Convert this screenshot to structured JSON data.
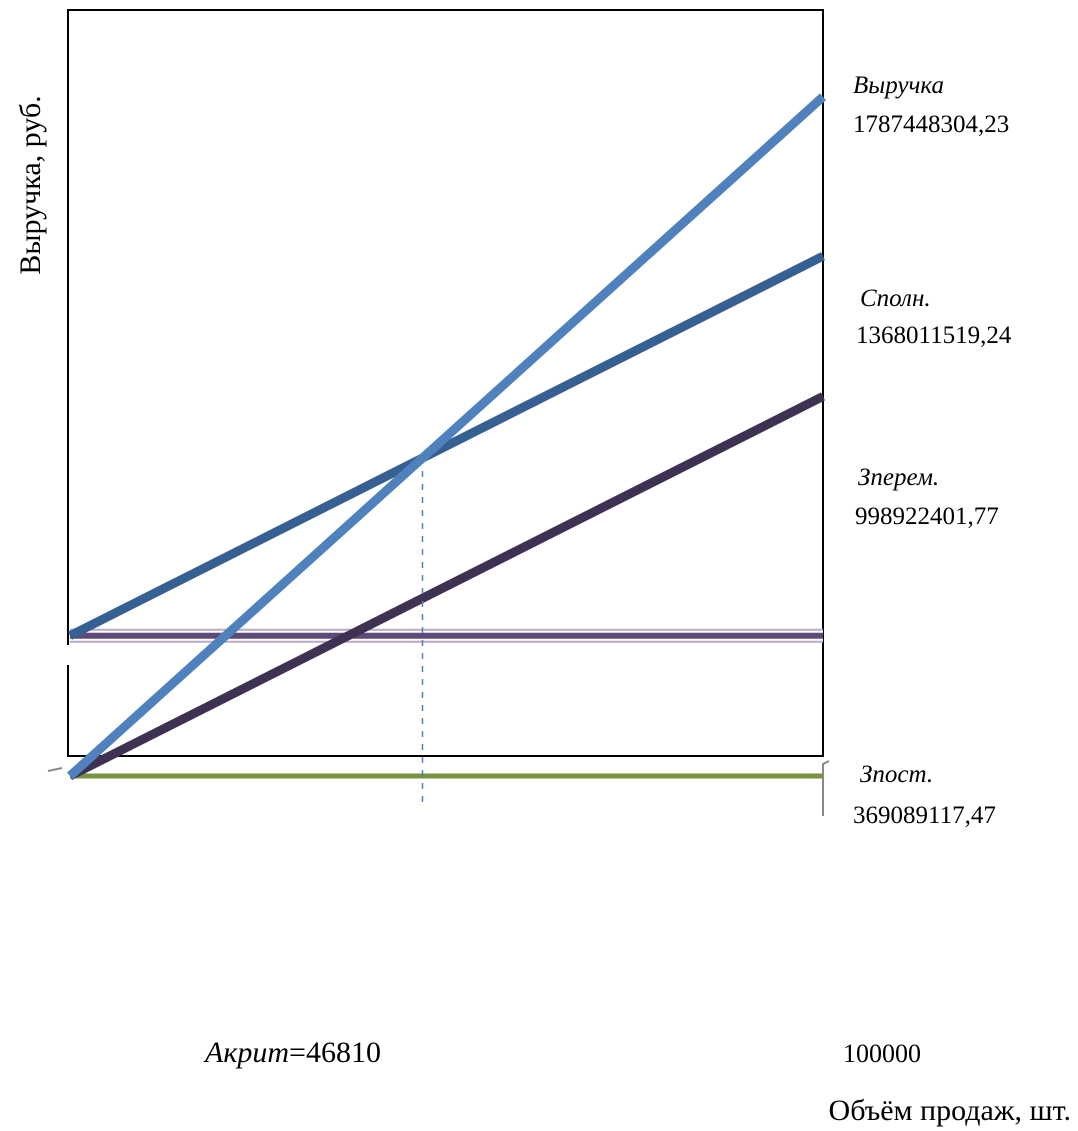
{
  "chart_data": {
    "type": "line",
    "title": "",
    "xlabel": "Объём продаж, шт.",
    "ylabel": "Выручка, руб.",
    "xlim": [
      0,
      100000
    ],
    "ylim": [
      0,
      2000000000
    ],
    "x_tick_max_label": "100000",
    "critical_point": {
      "prefix": "Акрит",
      "suffix": "=46810",
      "x": 46810
    },
    "series": [
      {
        "key": "revenue",
        "name": "Выручка",
        "value_label": "1787448304,23",
        "x": [
          0,
          100000
        ],
        "y": [
          0,
          1787448304.23
        ],
        "color": "#4f81bd"
      },
      {
        "key": "total",
        "name": "Сполн.",
        "value_label": "1368011519,24",
        "x": [
          0,
          100000
        ],
        "y": [
          369089117.47,
          1368011519.24
        ],
        "color": "#376092"
      },
      {
        "key": "variable",
        "name": "Зперем.",
        "value_label": "998922401,77",
        "x": [
          0,
          100000
        ],
        "y": [
          0,
          998922401.77
        ],
        "color": "#3f3151"
      },
      {
        "key": "fixed",
        "name": "Зпост.",
        "value_label": "369089117,47",
        "x": [
          0,
          100000
        ],
        "y": [
          369089117.47,
          369089117.47
        ],
        "color": "#5f497a"
      },
      {
        "key": "base",
        "name": "",
        "value_label": "",
        "x": [
          0,
          100000
        ],
        "y": [
          0,
          0
        ],
        "color": "#77933c"
      }
    ],
    "grid": false,
    "legend": "right-end labels"
  }
}
